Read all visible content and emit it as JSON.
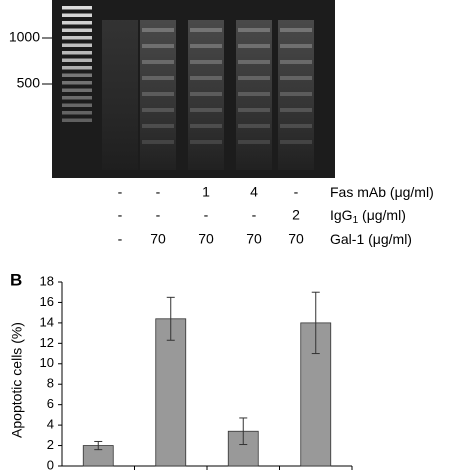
{
  "gel": {
    "markers": [
      "1000",
      "500"
    ],
    "conditions": [
      {
        "label": "Fas mAb (μg/ml)",
        "values": [
          "-",
          "-",
          "1",
          "4",
          "-"
        ]
      },
      {
        "label": "IgG",
        "label_sub": "1",
        "label_rest": " (μg/ml)",
        "values": [
          "-",
          "-",
          "-",
          "-",
          "2"
        ]
      },
      {
        "label": "Gal-1 (μg/ml)",
        "values": [
          "-",
          "70",
          "70",
          "70",
          "70"
        ]
      }
    ]
  },
  "chart_data": {
    "type": "bar",
    "panel_label": "B",
    "y_label": "Apoptotic cells (%)",
    "categories": [
      null,
      null,
      null,
      null
    ],
    "values": [
      2,
      14.4,
      3.4,
      14
    ],
    "errors": [
      0.4,
      2.1,
      1.3,
      3
    ],
    "color": "#999999",
    "ylim": [
      0,
      18
    ],
    "yticks": [
      0,
      2,
      4,
      6,
      8,
      10,
      12,
      14,
      16,
      18
    ],
    "grid": false
  }
}
